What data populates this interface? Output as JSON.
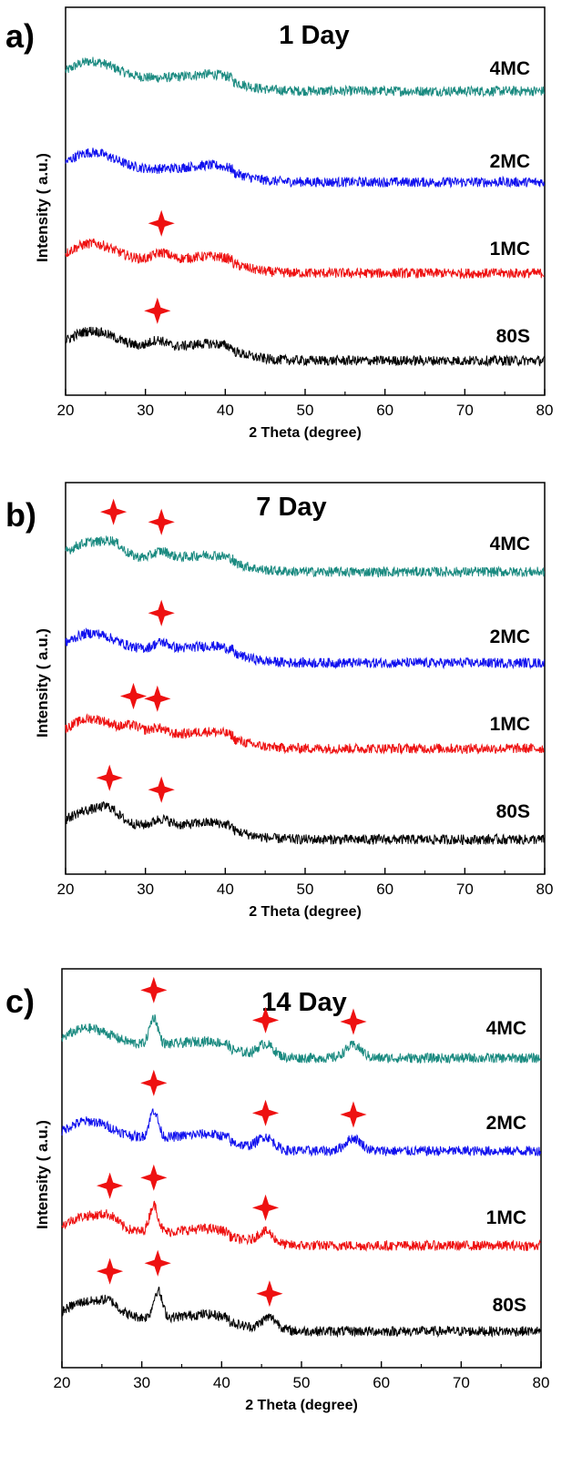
{
  "chart_data": [
    {
      "panel_label": "a)",
      "type": "line",
      "title": "1 Day",
      "xlabel": "2 Theta (degree)",
      "ylabel": "Intensity ( a.u.)",
      "xlim": [
        20,
        80
      ],
      "x_ticks": [
        "20",
        "30",
        "40",
        "50",
        "60",
        "70",
        "80"
      ],
      "grid": false,
      "series": [
        {
          "name": "4MC",
          "color": "#1a8a80",
          "peaks": []
        },
        {
          "name": "2MC",
          "color": "#1010ee",
          "peaks": []
        },
        {
          "name": "1MC",
          "color": "#ee1111",
          "peaks": [
            32.0
          ]
        },
        {
          "name": "80S",
          "color": "#000000",
          "peaks": [
            31.5
          ]
        }
      ],
      "marker": "red four-point star (crystalline peak)"
    },
    {
      "panel_label": "b)",
      "type": "line",
      "title": "7 Day",
      "xlabel": "2 Theta (degree)",
      "ylabel": "Intensity ( a.u.)",
      "xlim": [
        20,
        80
      ],
      "x_ticks": [
        "20",
        "30",
        "40",
        "50",
        "60",
        "70",
        "80"
      ],
      "grid": false,
      "series": [
        {
          "name": "4MC",
          "color": "#1a8a80",
          "peaks": [
            26.0,
            32.0
          ]
        },
        {
          "name": "2MC",
          "color": "#1010ee",
          "peaks": [
            32.0
          ]
        },
        {
          "name": "1MC",
          "color": "#ee1111",
          "peaks": [
            28.5,
            31.5
          ]
        },
        {
          "name": "80S",
          "color": "#000000",
          "peaks": [
            25.5,
            32.0
          ]
        }
      ],
      "marker": "red four-point star (crystalline peak)"
    },
    {
      "panel_label": "c)",
      "type": "line",
      "title": "14 Day",
      "xlabel": "2 Theta (degree)",
      "ylabel": "Intensity ( a.u.)",
      "xlim": [
        20,
        80
      ],
      "x_ticks": [
        "20",
        "30",
        "40",
        "50",
        "60",
        "70",
        "80"
      ],
      "grid": false,
      "series": [
        {
          "name": "4MC",
          "color": "#1a8a80",
          "peaks": [
            31.5,
            45.5,
            56.5
          ]
        },
        {
          "name": "2MC",
          "color": "#1010ee",
          "peaks": [
            31.5,
            45.5,
            56.5
          ]
        },
        {
          "name": "1MC",
          "color": "#ee1111",
          "peaks": [
            26.0,
            31.5,
            45.5
          ]
        },
        {
          "name": "80S",
          "color": "#000000",
          "peaks": [
            26.0,
            32.0,
            46.0
          ]
        }
      ],
      "marker": "red four-point star (crystalline peak)"
    }
  ]
}
